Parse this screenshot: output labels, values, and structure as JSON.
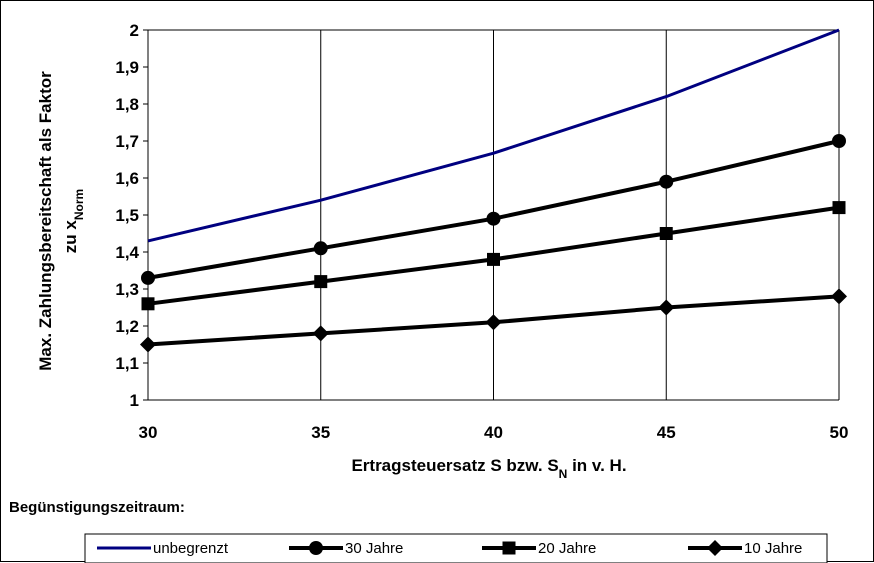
{
  "chart_data": {
    "type": "line",
    "x": [
      30,
      35,
      40,
      45,
      50
    ],
    "xlim": [
      30,
      50
    ],
    "ylim": [
      1,
      2
    ],
    "y_ticks": [
      "1",
      "1,1",
      "1,2",
      "1,3",
      "1,4",
      "1,5",
      "1,6",
      "1,7",
      "1,8",
      "1,9",
      "2"
    ],
    "x_ticks": [
      "30",
      "35",
      "40",
      "45",
      "50"
    ],
    "xlabel": {
      "main": "Ertragsteuersatz S bzw. S",
      "sub": "N",
      "tail": " in v. H."
    },
    "ylabel": {
      "line1": "Max. Zahlungsbereitschaft als Faktor",
      "line2_main": "zu x",
      "line2_sub": "Norm"
    },
    "grid": {
      "horizontal": false,
      "vertical": true
    },
    "legend_title": "Begünstigungszeitraum:",
    "legend_position": "bottom",
    "series": [
      {
        "name": "unbegrenzt",
        "values": [
          1.43,
          1.54,
          1.667,
          1.82,
          2.0
        ],
        "color": "#000080",
        "marker": "none"
      },
      {
        "name": "30 Jahre",
        "values": [
          1.33,
          1.41,
          1.49,
          1.59,
          1.7
        ],
        "color": "#000000",
        "marker": "circle"
      },
      {
        "name": "20 Jahre",
        "values": [
          1.26,
          1.32,
          1.38,
          1.45,
          1.52
        ],
        "color": "#000000",
        "marker": "square"
      },
      {
        "name": "10 Jahre",
        "values": [
          1.15,
          1.18,
          1.21,
          1.25,
          1.28
        ],
        "color": "#000000",
        "marker": "diamond"
      }
    ]
  }
}
